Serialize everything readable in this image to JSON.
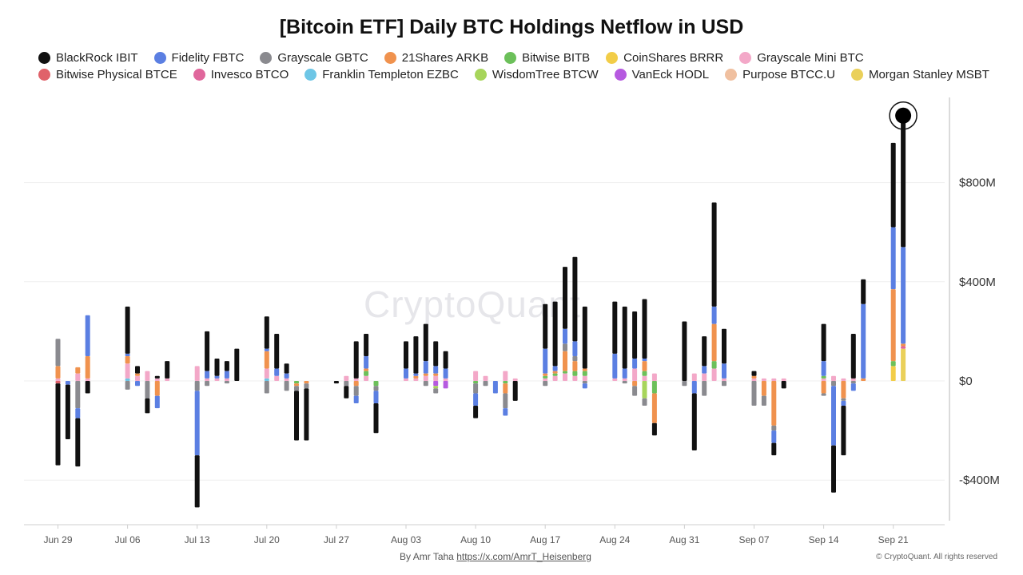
{
  "chart_data": {
    "type": "bar",
    "stacked": true,
    "title": "[Bitcoin ETF] Daily BTC Holdings Netflow in USD",
    "watermark": "CryptoQuant",
    "author_prefix": "By Amr Taha",
    "author_link": "https://x.com/AmrT_Heisenberg",
    "copyright": "© CryptoQuant. All rights reserved",
    "ylim": [
      -580,
      1130
    ],
    "y_ticks": [
      800,
      400,
      0,
      -400
    ],
    "y_tick_labels": [
      "$800M",
      "$400M",
      "$0",
      "-$400M"
    ],
    "x_tick_labels": [
      "Jun 29",
      "Jul 06",
      "Jul 13",
      "Jul 20",
      "Jul 27",
      "Aug 03",
      "Aug 10",
      "Aug 17",
      "Aug 24",
      "Aug 31",
      "Sep 07",
      "Sep 14",
      "Sep 21"
    ],
    "grid": true,
    "legend": "top",
    "series_meta": [
      {
        "name": "BlackRock IBIT",
        "color": "#111111"
      },
      {
        "name": "Fidelity FBTC",
        "color": "#5b7fe2"
      },
      {
        "name": "Grayscale GBTC",
        "color": "#8a8a8f"
      },
      {
        "name": "21Shares ARKB",
        "color": "#f0924e"
      },
      {
        "name": "Bitwise BITB",
        "color": "#6cc05a"
      },
      {
        "name": "CoinShares BRRR",
        "color": "#f2cd48"
      },
      {
        "name": "Grayscale Mini BTC",
        "color": "#f3a8c8"
      },
      {
        "name": "Bitwise Physical BTCE",
        "color": "#e0626a"
      },
      {
        "name": "Invesco BTCO",
        "color": "#e0679c"
      },
      {
        "name": "Franklin Templeton EZBC",
        "color": "#6ec6e6"
      },
      {
        "name": "WisdomTree BTCW",
        "color": "#a7d55b"
      },
      {
        "name": "VanEck HODL",
        "color": "#b65ae0"
      },
      {
        "name": "Purpose BTCC.U",
        "color": "#f0c0a0"
      },
      {
        "name": "Morgan Stanley MSBT",
        "color": "#ead05a"
      }
    ],
    "days": [
      {
        "date": "Jun 29",
        "values": [
          -330,
          0,
          110,
          50,
          0,
          0,
          10,
          -10,
          0,
          0,
          0,
          0,
          0,
          0
        ]
      },
      {
        "date": "Jun 30",
        "values": [
          -220,
          -15,
          0,
          0,
          0,
          0,
          0,
          0,
          0,
          0,
          0,
          0,
          0,
          0
        ]
      },
      {
        "date": "Jul 01",
        "values": [
          -195,
          -40,
          -110,
          25,
          0,
          0,
          30,
          0,
          0,
          0,
          0,
          0,
          0,
          0
        ]
      },
      {
        "date": "Jul 02",
        "values": [
          -50,
          165,
          0,
          90,
          0,
          0,
          10,
          0,
          0,
          0,
          0,
          0,
          0,
          0
        ]
      },
      {
        "date": "Jul 06",
        "values": [
          190,
          10,
          -35,
          30,
          0,
          0,
          60,
          0,
          0,
          10,
          0,
          0,
          0,
          0
        ]
      },
      {
        "date": "Jul 07",
        "values": [
          30,
          -20,
          0,
          10,
          0,
          0,
          20,
          0,
          0,
          0,
          0,
          0,
          0,
          0
        ]
      },
      {
        "date": "Jul 08",
        "values": [
          -60,
          0,
          -70,
          0,
          0,
          0,
          40,
          0,
          0,
          0,
          0,
          0,
          0,
          0
        ]
      },
      {
        "date": "Jul 09",
        "values": [
          10,
          -50,
          0,
          -60,
          0,
          0,
          10,
          0,
          0,
          0,
          0,
          0,
          0,
          0
        ]
      },
      {
        "date": "Jul 10",
        "values": [
          70,
          0,
          0,
          0,
          0,
          0,
          10,
          0,
          0,
          0,
          0,
          0,
          0,
          0
        ]
      },
      {
        "date": "Jul 13",
        "values": [
          -210,
          -260,
          -40,
          0,
          0,
          0,
          60,
          0,
          0,
          0,
          0,
          0,
          0,
          0
        ]
      },
      {
        "date": "Jul 14",
        "values": [
          160,
          30,
          -20,
          0,
          0,
          0,
          10,
          0,
          0,
          0,
          0,
          0,
          0,
          0
        ]
      },
      {
        "date": "Jul 15",
        "values": [
          70,
          10,
          0,
          0,
          0,
          0,
          10,
          0,
          0,
          0,
          0,
          0,
          0,
          0
        ]
      },
      {
        "date": "Jul 16",
        "values": [
          40,
          30,
          -10,
          0,
          0,
          0,
          10,
          0,
          0,
          0,
          0,
          0,
          0,
          0
        ]
      },
      {
        "date": "Jul 17",
        "values": [
          130,
          0,
          0,
          0,
          0,
          0,
          0,
          0,
          0,
          0,
          0,
          0,
          0,
          0
        ]
      },
      {
        "date": "Jul 20",
        "values": [
          130,
          10,
          -50,
          70,
          0,
          0,
          40,
          0,
          0,
          10,
          0,
          0,
          0,
          0
        ]
      },
      {
        "date": "Jul 21",
        "values": [
          140,
          30,
          0,
          0,
          0,
          0,
          20,
          0,
          0,
          0,
          0,
          0,
          0,
          0
        ]
      },
      {
        "date": "Jul 22",
        "values": [
          40,
          20,
          -40,
          0,
          0,
          0,
          10,
          0,
          0,
          0,
          0,
          0,
          0,
          0
        ]
      },
      {
        "date": "Jul 23",
        "values": [
          -200,
          0,
          -20,
          -10,
          -10,
          0,
          0,
          0,
          0,
          0,
          0,
          0,
          0,
          0
        ]
      },
      {
        "date": "Jul 24",
        "values": [
          -210,
          0,
          -20,
          -10,
          0,
          0,
          0,
          0,
          0,
          0,
          0,
          0,
          0,
          0
        ]
      },
      {
        "date": "Jul 27",
        "values": [
          -10,
          0,
          0,
          0,
          0,
          0,
          0,
          0,
          0,
          0,
          0,
          0,
          0,
          0
        ]
      },
      {
        "date": "Jul 28",
        "values": [
          -50,
          0,
          -20,
          0,
          0,
          0,
          20,
          0,
          0,
          0,
          0,
          0,
          0,
          0
        ]
      },
      {
        "date": "Jul 29",
        "values": [
          150,
          -30,
          -40,
          -20,
          0,
          0,
          10,
          0,
          0,
          0,
          0,
          0,
          0,
          0
        ]
      },
      {
        "date": "Jul 30",
        "values": [
          90,
          50,
          0,
          10,
          20,
          0,
          20,
          0,
          0,
          0,
          0,
          0,
          0,
          0
        ]
      },
      {
        "date": "Jul 31",
        "values": [
          -120,
          -50,
          -20,
          0,
          -20,
          0,
          0,
          0,
          0,
          0,
          0,
          0,
          0,
          0
        ]
      },
      {
        "date": "Aug 03",
        "values": [
          110,
          40,
          0,
          0,
          0,
          0,
          10,
          0,
          0,
          0,
          0,
          0,
          0,
          0
        ]
      },
      {
        "date": "Aug 04",
        "values": [
          150,
          10,
          0,
          10,
          0,
          0,
          10,
          0,
          0,
          0,
          0,
          0,
          0,
          0
        ]
      },
      {
        "date": "Aug 05",
        "values": [
          150,
          50,
          -20,
          10,
          0,
          0,
          20,
          0,
          0,
          0,
          0,
          0,
          0,
          0
        ]
      },
      {
        "date": "Aug 06",
        "values": [
          100,
          30,
          -20,
          10,
          0,
          0,
          20,
          0,
          0,
          0,
          -10,
          -20,
          0,
          0
        ]
      },
      {
        "date": "Aug 07",
        "values": [
          70,
          40,
          0,
          0,
          0,
          0,
          10,
          0,
          0,
          0,
          0,
          -30,
          0,
          0
        ]
      },
      {
        "date": "Aug 10",
        "values": [
          -50,
          -50,
          -40,
          0,
          -10,
          0,
          40,
          0,
          0,
          0,
          0,
          0,
          0,
          0
        ]
      },
      {
        "date": "Aug 11",
        "values": [
          0,
          0,
          -20,
          0,
          0,
          0,
          20,
          0,
          0,
          0,
          0,
          0,
          0,
          0
        ]
      },
      {
        "date": "Aug 12",
        "values": [
          0,
          -50,
          0,
          0,
          0,
          0,
          0,
          0,
          0,
          0,
          0,
          0,
          0,
          0
        ]
      },
      {
        "date": "Aug 13",
        "values": [
          0,
          -30,
          -60,
          -40,
          -10,
          0,
          40,
          0,
          0,
          0,
          0,
          0,
          0,
          0
        ]
      },
      {
        "date": "Aug 14",
        "values": [
          -80,
          0,
          0,
          0,
          0,
          0,
          10,
          0,
          0,
          0,
          0,
          0,
          0,
          0
        ]
      },
      {
        "date": "Aug 17",
        "values": [
          180,
          100,
          -20,
          10,
          10,
          0,
          10,
          0,
          0,
          0,
          0,
          0,
          0,
          0
        ]
      },
      {
        "date": "Aug 18",
        "values": [
          260,
          20,
          0,
          10,
          10,
          0,
          20,
          0,
          0,
          0,
          0,
          0,
          0,
          0
        ]
      },
      {
        "date": "Aug 19",
        "values": [
          250,
          60,
          30,
          80,
          10,
          0,
          30,
          0,
          0,
          0,
          0,
          0,
          0,
          0
        ]
      },
      {
        "date": "Aug 20",
        "values": [
          340,
          60,
          20,
          40,
          20,
          0,
          20,
          0,
          0,
          0,
          0,
          0,
          0,
          0
        ]
      },
      {
        "date": "Aug 21",
        "values": [
          250,
          -20,
          -10,
          10,
          20,
          0,
          20,
          0,
          0,
          0,
          0,
          0,
          0,
          0
        ]
      },
      {
        "date": "Aug 24",
        "values": [
          210,
          100,
          0,
          0,
          0,
          0,
          10,
          0,
          0,
          0,
          0,
          0,
          0,
          0
        ]
      },
      {
        "date": "Aug 25",
        "values": [
          250,
          40,
          -10,
          0,
          0,
          0,
          10,
          0,
          0,
          0,
          0,
          0,
          0,
          0
        ]
      },
      {
        "date": "Aug 26",
        "values": [
          190,
          40,
          -40,
          -20,
          0,
          0,
          50,
          0,
          0,
          0,
          0,
          0,
          0,
          0
        ]
      },
      {
        "date": "Aug 27",
        "values": [
          240,
          10,
          -30,
          40,
          20,
          0,
          20,
          0,
          0,
          0,
          -70,
          0,
          0,
          0
        ]
      },
      {
        "date": "Aug 28",
        "values": [
          -50,
          0,
          0,
          -120,
          -50,
          0,
          30,
          0,
          0,
          0,
          0,
          0,
          0,
          0
        ]
      },
      {
        "date": "Aug 31",
        "values": [
          240,
          0,
          -20,
          0,
          0,
          0,
          0,
          0,
          0,
          0,
          0,
          0,
          0,
          0
        ]
      },
      {
        "date": "Sep 01",
        "values": [
          -230,
          -50,
          0,
          0,
          0,
          0,
          30,
          0,
          0,
          0,
          0,
          0,
          0,
          0
        ]
      },
      {
        "date": "Sep 02",
        "values": [
          120,
          30,
          -60,
          0,
          0,
          0,
          30,
          0,
          0,
          0,
          0,
          0,
          0,
          0
        ]
      },
      {
        "date": "Sep 03",
        "values": [
          420,
          70,
          0,
          150,
          30,
          0,
          50,
          0,
          0,
          0,
          0,
          0,
          0,
          0
        ]
      },
      {
        "date": "Sep 04",
        "values": [
          140,
          60,
          -20,
          0,
          0,
          0,
          10,
          0,
          0,
          0,
          0,
          0,
          0,
          0
        ]
      },
      {
        "date": "Sep 07",
        "values": [
          20,
          0,
          -100,
          10,
          0,
          0,
          10,
          0,
          0,
          0,
          0,
          0,
          0,
          0
        ]
      },
      {
        "date": "Sep 08",
        "values": [
          0,
          0,
          -40,
          -60,
          0,
          0,
          10,
          0,
          0,
          0,
          0,
          0,
          0,
          0
        ]
      },
      {
        "date": "Sep 09",
        "values": [
          -50,
          -50,
          -20,
          -180,
          0,
          0,
          10,
          0,
          0,
          0,
          0,
          0,
          0,
          0
        ]
      },
      {
        "date": "Sep 10",
        "values": [
          -30,
          0,
          0,
          0,
          0,
          0,
          10,
          0,
          0,
          0,
          0,
          0,
          0,
          0
        ]
      },
      {
        "date": "Sep 14",
        "values": [
          150,
          60,
          -10,
          -50,
          10,
          0,
          10,
          0,
          0,
          0,
          0,
          0,
          0,
          0
        ]
      },
      {
        "date": "Sep 15",
        "values": [
          -190,
          -240,
          -20,
          0,
          0,
          0,
          20,
          0,
          0,
          0,
          0,
          0,
          0,
          0
        ]
      },
      {
        "date": "Sep 16",
        "values": [
          -200,
          -20,
          -10,
          -70,
          0,
          0,
          10,
          0,
          0,
          0,
          0,
          0,
          0,
          0
        ]
      },
      {
        "date": "Sep 17",
        "values": [
          180,
          -30,
          -10,
          0,
          0,
          0,
          10,
          0,
          0,
          0,
          0,
          0,
          0,
          0
        ]
      },
      {
        "date": "Sep 18",
        "values": [
          100,
          300,
          0,
          10,
          0,
          0,
          0,
          0,
          0,
          0,
          0,
          0,
          0,
          0
        ]
      },
      {
        "date": "Sep 21",
        "values": [
          340,
          250,
          0,
          290,
          20,
          60,
          0,
          0,
          0,
          0,
          0,
          0,
          0,
          0
        ]
      },
      {
        "date": "Sep 22",
        "values": [
          530,
          390,
          0,
          10,
          0,
          0,
          0,
          0,
          10,
          0,
          0,
          0,
          0,
          130
        ]
      }
    ]
  }
}
